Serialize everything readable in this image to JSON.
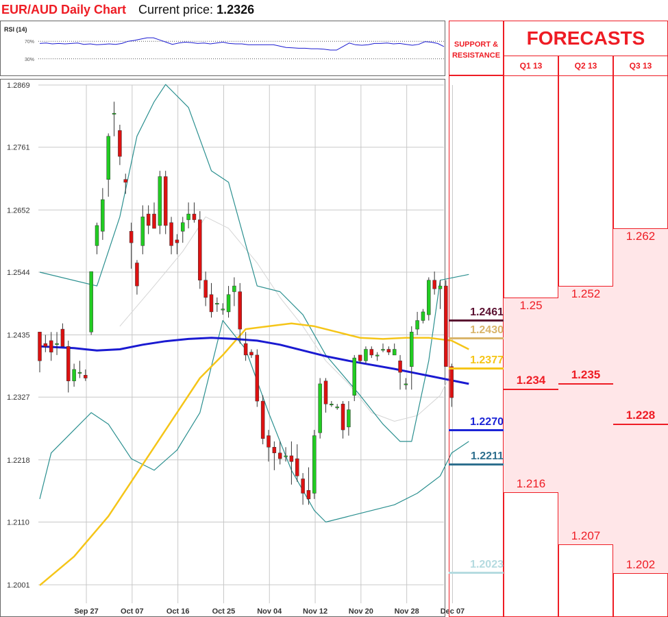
{
  "header": {
    "title": "EUR/AUD Daily Chart",
    "current_price_label": "Current price:",
    "current_price_value": "1.2326"
  },
  "rsi": {
    "label": "RSI (14)",
    "level_high": "70%",
    "level_low": "30%",
    "values": [
      65,
      66,
      64,
      65,
      64,
      65,
      66,
      63,
      64,
      62,
      63,
      64,
      63,
      65,
      70,
      72,
      75,
      78,
      78,
      73,
      68,
      63,
      66,
      68,
      67,
      65,
      66,
      64,
      66,
      68,
      65,
      64,
      64,
      62,
      62,
      62,
      62,
      62,
      59,
      56,
      55,
      54,
      54,
      53,
      53,
      52,
      50,
      50,
      58,
      66,
      62,
      61,
      62,
      65,
      65,
      66,
      64,
      65,
      63,
      61,
      63,
      69,
      68,
      65,
      58
    ]
  },
  "chart_data": {
    "type": "candlestick",
    "title": "EUR/AUD Daily Chart",
    "yticks": [
      "1.2869",
      "1.2761",
      "1.2652",
      "1.2544",
      "1.2435",
      "1.2327",
      "1.2218",
      "1.2110",
      "1.2001"
    ],
    "ylim": [
      1.2001,
      1.2869
    ],
    "xticks": [
      {
        "label": "Sep 27",
        "index": 3
      },
      {
        "label": "Oct 07",
        "index": 11
      },
      {
        "label": "Oct 16",
        "index": 19
      },
      {
        "label": "Oct 25",
        "index": 27
      },
      {
        "label": "Nov 04",
        "index": 35
      },
      {
        "label": "Nov 12",
        "index": 43
      },
      {
        "label": "Nov 20",
        "index": 51
      },
      {
        "label": "Nov 28",
        "index": 59
      },
      {
        "label": "Dec 07",
        "index": 67
      }
    ],
    "candles": [
      [
        1.244,
        1.244,
        1.237,
        1.239
      ],
      [
        1.242,
        1.2435,
        1.2405,
        1.2415
      ],
      [
        1.2425,
        1.244,
        1.239,
        1.2405
      ],
      [
        1.242,
        1.244,
        1.24,
        1.242
      ],
      [
        1.2445,
        1.2455,
        1.2415,
        1.2415
      ],
      [
        1.2415,
        1.2425,
        1.2335,
        1.2355
      ],
      [
        1.2355,
        1.2385,
        1.2345,
        1.2375
      ],
      [
        1.237,
        1.239,
        1.236,
        1.237
      ],
      [
        1.2365,
        1.2375,
        1.2355,
        1.236
      ],
      [
        1.244,
        1.2545,
        1.2435,
        1.2545
      ],
      [
        1.259,
        1.263,
        1.2575,
        1.2625
      ],
      [
        1.2615,
        1.269,
        1.26,
        1.267
      ],
      [
        1.2705,
        1.2785,
        1.2675,
        1.278
      ],
      [
        1.282,
        1.284,
        1.278,
        1.282
      ],
      [
        1.279,
        1.28,
        1.273,
        1.2745
      ],
      [
        1.2705,
        1.2715,
        1.268,
        1.27
      ],
      [
        1.2615,
        1.263,
        1.255,
        1.2595
      ],
      [
        1.256,
        1.2565,
        1.2505,
        1.252
      ],
      [
        1.259,
        1.266,
        1.2575,
        1.264
      ],
      [
        1.2645,
        1.266,
        1.261,
        1.2625
      ],
      [
        1.2645,
        1.2665,
        1.262,
        1.262
      ],
      [
        1.2625,
        1.272,
        1.261,
        1.271
      ],
      [
        1.271,
        1.272,
        1.261,
        1.2625
      ],
      [
        1.263,
        1.264,
        1.2575,
        1.259
      ],
      [
        1.26,
        1.261,
        1.2575,
        1.2595
      ],
      [
        1.2615,
        1.264,
        1.2595,
        1.263
      ],
      [
        1.2635,
        1.2665,
        1.262,
        1.2645
      ],
      [
        1.2645,
        1.2665,
        1.263,
        1.2635
      ],
      [
        1.2635,
        1.265,
        1.2515,
        1.253
      ],
      [
        1.253,
        1.2545,
        1.2485,
        1.25
      ],
      [
        1.2505,
        1.2525,
        1.2465,
        1.2475
      ],
      [
        1.249,
        1.25,
        1.2475,
        1.249
      ],
      [
        1.248,
        1.249,
        1.247,
        1.248
      ],
      [
        1.2475,
        1.252,
        1.2465,
        1.2505
      ],
      [
        1.251,
        1.2535,
        1.2485,
        1.252
      ],
      [
        1.251,
        1.2525,
        1.242,
        1.2445
      ],
      [
        1.242,
        1.244,
        1.239,
        1.24
      ],
      [
        1.2405,
        1.241,
        1.2395,
        1.24
      ],
      [
        1.24,
        1.241,
        1.231,
        1.232
      ],
      [
        1.232,
        1.233,
        1.2245,
        1.2255
      ],
      [
        1.226,
        1.227,
        1.2215,
        1.224
      ],
      [
        1.224,
        1.225,
        1.22,
        1.223
      ],
      [
        1.223,
        1.225,
        1.221,
        1.222
      ],
      [
        1.2225,
        1.224,
        1.2215,
        1.2225
      ],
      [
        1.2225,
        1.225,
        1.2175,
        1.2215
      ],
      [
        1.222,
        1.2245,
        1.218,
        1.219
      ],
      [
        1.2185,
        1.2195,
        1.214,
        1.216
      ],
      [
        1.2165,
        1.2205,
        1.214,
        1.215
      ],
      [
        1.216,
        1.227,
        1.215,
        1.226
      ],
      [
        1.2265,
        1.236,
        1.2255,
        1.235
      ],
      [
        1.2355,
        1.236,
        1.23,
        1.2315
      ],
      [
        1.2315,
        1.232,
        1.231,
        1.2315
      ],
      [
        1.231,
        1.2315,
        1.2305,
        1.231
      ],
      [
        1.2315,
        1.232,
        1.2255,
        1.227
      ],
      [
        1.2275,
        1.232,
        1.226,
        1.2305
      ],
      [
        1.233,
        1.24,
        1.232,
        1.2395
      ],
      [
        1.24,
        1.24,
        1.2385,
        1.239
      ],
      [
        1.239,
        1.2415,
        1.2385,
        1.241
      ],
      [
        1.241,
        1.2415,
        1.2395,
        1.24
      ],
      [
        1.24,
        1.2405,
        1.239,
        1.24
      ],
      [
        1.241,
        1.242,
        1.2405,
        1.241
      ],
      [
        1.241,
        1.2415,
        1.24,
        1.2405
      ],
      [
        1.24,
        1.242,
        1.24,
        1.241
      ],
      [
        1.239,
        1.24,
        1.234,
        1.237
      ],
      [
        1.235,
        1.236,
        1.234,
        1.235
      ],
      [
        1.238,
        1.245,
        1.234,
        1.244
      ],
      [
        1.2445,
        1.2475,
        1.2435,
        1.246
      ],
      [
        1.246,
        1.248,
        1.2455,
        1.2475
      ],
      [
        1.247,
        1.2535,
        1.246,
        1.253
      ],
      [
        1.253,
        1.2545,
        1.2505,
        1.2515
      ],
      [
        1.2515,
        1.253,
        1.248,
        1.252
      ],
      [
        1.252,
        1.253,
        1.238,
        1.238
      ],
      [
        1.238,
        1.2385,
        1.231,
        1.2326
      ]
    ],
    "overlays": {
      "bollinger_upper": [
        [
          0,
          1.2544
        ],
        [
          10,
          1.252
        ],
        [
          14,
          1.264
        ],
        [
          17,
          1.278
        ],
        [
          20,
          1.284
        ],
        [
          22,
          1.287
        ],
        [
          26,
          1.283
        ],
        [
          30,
          1.272
        ],
        [
          33,
          1.27
        ],
        [
          38,
          1.252
        ],
        [
          42,
          1.251
        ],
        [
          46,
          1.247
        ],
        [
          50,
          1.24
        ],
        [
          56,
          1.233
        ],
        [
          60,
          1.228
        ],
        [
          63,
          1.225
        ],
        [
          65,
          1.225
        ],
        [
          68,
          1.239
        ],
        [
          70,
          1.253
        ],
        [
          75,
          1.254
        ]
      ],
      "bollinger_middle": [
        [
          14,
          1.245
        ],
        [
          20,
          1.252
        ],
        [
          25,
          1.258
        ],
        [
          29,
          1.264
        ],
        [
          33,
          1.262
        ],
        [
          38,
          1.256
        ],
        [
          42,
          1.25
        ],
        [
          46,
          1.245
        ],
        [
          50,
          1.239
        ],
        [
          54,
          1.235
        ],
        [
          58,
          1.23
        ],
        [
          62,
          1.2285
        ],
        [
          66,
          1.2295
        ],
        [
          70,
          1.233
        ],
        [
          72,
          1.237
        ]
      ],
      "bollinger_lower": [
        [
          0,
          1.215
        ],
        [
          2,
          1.223
        ],
        [
          6,
          1.227
        ],
        [
          9,
          1.23
        ],
        [
          12,
          1.228
        ],
        [
          16,
          1.222
        ],
        [
          20,
          1.22
        ],
        [
          24,
          1.2235
        ],
        [
          28,
          1.23
        ],
        [
          32,
          1.246
        ],
        [
          36,
          1.241
        ],
        [
          40,
          1.23
        ],
        [
          44,
          1.22
        ],
        [
          48,
          1.213
        ],
        [
          50,
          1.211
        ],
        [
          54,
          1.212
        ],
        [
          58,
          1.213
        ],
        [
          62,
          1.214
        ],
        [
          66,
          1.216
        ],
        [
          70,
          1.219
        ],
        [
          72,
          1.223
        ],
        [
          75,
          1.225
        ]
      ],
      "ma_yellow": [
        [
          0,
          1.2
        ],
        [
          6,
          1.205
        ],
        [
          12,
          1.212
        ],
        [
          16,
          1.218
        ],
        [
          20,
          1.224
        ],
        [
          24,
          1.23
        ],
        [
          28,
          1.236
        ],
        [
          32,
          1.24
        ],
        [
          36,
          1.2445
        ],
        [
          40,
          1.245
        ],
        [
          44,
          1.2455
        ],
        [
          48,
          1.245
        ],
        [
          52,
          1.244
        ],
        [
          56,
          1.243
        ],
        [
          60,
          1.2428
        ],
        [
          64,
          1.243
        ],
        [
          68,
          1.243
        ],
        [
          72,
          1.2425
        ],
        [
          75,
          1.241
        ]
      ],
      "ma_blue": [
        [
          0,
          1.2415
        ],
        [
          6,
          1.2412
        ],
        [
          10,
          1.2408
        ],
        [
          14,
          1.241
        ],
        [
          18,
          1.2418
        ],
        [
          22,
          1.2424
        ],
        [
          26,
          1.2428
        ],
        [
          30,
          1.243
        ],
        [
          34,
          1.2428
        ],
        [
          38,
          1.2425
        ],
        [
          42,
          1.2418
        ],
        [
          46,
          1.2408
        ],
        [
          50,
          1.2398
        ],
        [
          54,
          1.239
        ],
        [
          58,
          1.2383
        ],
        [
          62,
          1.2376
        ],
        [
          66,
          1.2368
        ],
        [
          70,
          1.236
        ],
        [
          75,
          1.235
        ]
      ]
    },
    "support_resistance": [
      {
        "label": "1.2461",
        "value": 1.2461,
        "color": "#5a1030"
      },
      {
        "label": "1.2430",
        "value": 1.243,
        "color": "#d9b46a"
      },
      {
        "label": "1.2377",
        "value": 1.2377,
        "color": "#f5c518"
      },
      {
        "label": "1.2270",
        "value": 1.227,
        "color": "#1c24d6"
      },
      {
        "label": "1.2211",
        "value": 1.2211,
        "color": "#2e6f8e"
      },
      {
        "label": "1.2023",
        "value": 1.2023,
        "color": "#b5dbe0"
      }
    ]
  },
  "sr_panel": {
    "header_line1": "SUPPORT &",
    "header_line2": "RESISTANCE"
  },
  "forecasts": {
    "title": "FORECASTS",
    "quarters": [
      {
        "label": "Q1 13",
        "high": "1.25",
        "mid": "1.234",
        "low": "1.216"
      },
      {
        "label": "Q2 13",
        "high": "1.252",
        "mid": "1.235",
        "low": "1.207"
      },
      {
        "label": "Q3 13",
        "high": "1.262",
        "mid": "1.228",
        "low": "1.202"
      }
    ]
  },
  "colors": {
    "brand_red": "#ee1c24",
    "bull_candle": "#22cc22",
    "bear_candle": "#dd1111",
    "ma_blue": "#1a1ad1",
    "ma_yellow": "#f5c518",
    "bollinger": "#2a8f8f"
  }
}
